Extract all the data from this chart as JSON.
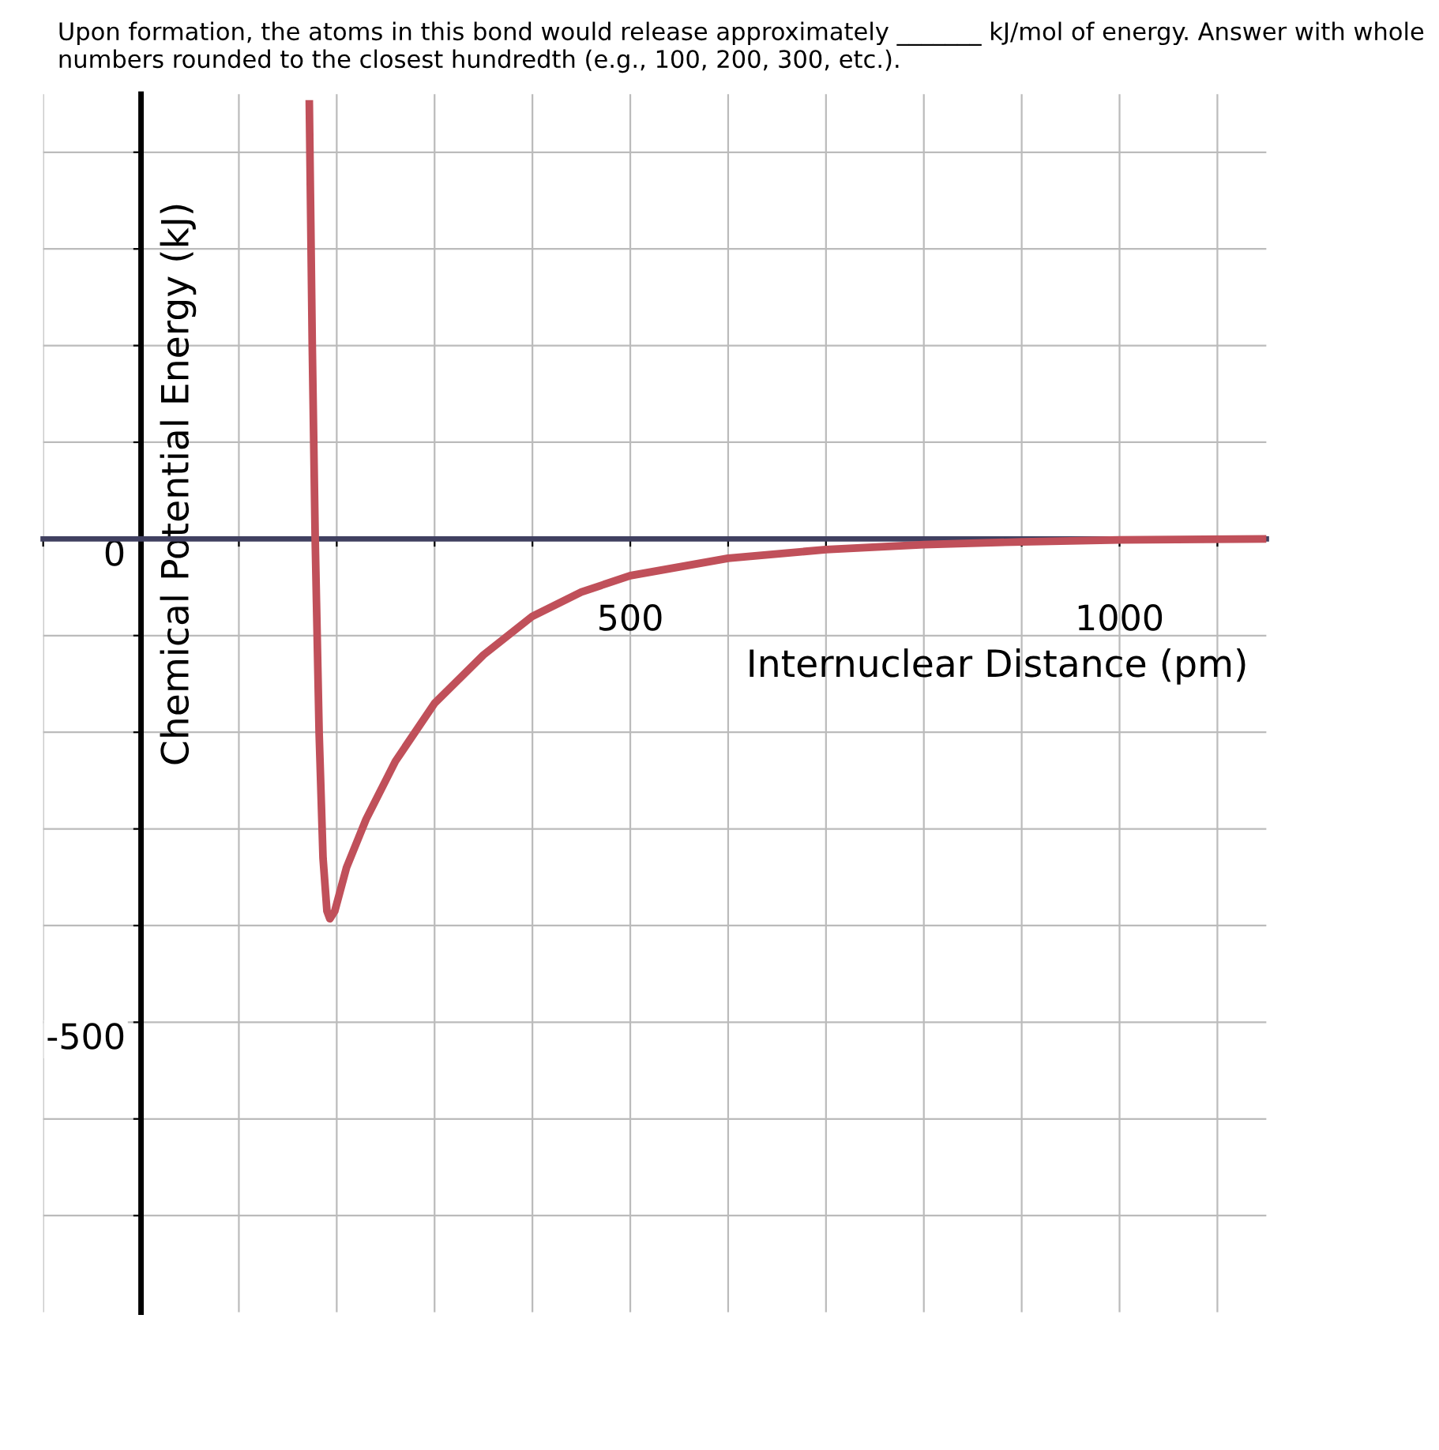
{
  "chart_data": {
    "type": "line",
    "title": "Upon formation, the atoms in this bond would release approximately _______ kJ/mol of energy. Answer with whole numbers rounded to the closest hundredth (e.g., 100, 200, 300, etc.).",
    "xlabel": "Internuclear Distance (pm)",
    "ylabel": "Chemical Potential Energy (kJ)",
    "series": [
      {
        "color": "#c0505a",
        "x": [
          172,
          175,
          178,
          182,
          186,
          190,
          193,
          198,
          210,
          230,
          260,
          300,
          350,
          400,
          450,
          500,
          600,
          700,
          800,
          900,
          1000,
          1150
        ],
        "values": [
          450,
          200,
          0,
          -200,
          -330,
          -385,
          -393,
          -385,
          -340,
          -290,
          -230,
          -170,
          -120,
          -80,
          -55,
          -38,
          -20,
          -11,
          -6,
          -3,
          -1,
          0
        ]
      }
    ],
    "xlim": [
      -100,
      1150
    ],
    "ylim": [
      -800,
      460
    ],
    "xticks": [
      {
        "value": -100,
        "label": null
      },
      {
        "value": 100,
        "label": null
      },
      {
        "value": 200,
        "label": null
      },
      {
        "value": 300,
        "label": null
      },
      {
        "value": 400,
        "label": null
      },
      500,
      {
        "value": 600,
        "label": null
      },
      {
        "value": 700,
        "label": null
      },
      {
        "value": 800,
        "label": null
      },
      {
        "value": 900,
        "label": null
      },
      1000,
      {
        "value": 1100,
        "label": null
      }
    ],
    "yticks": [
      {
        "value": -700,
        "label": null
      },
      {
        "value": -600,
        "label": null
      },
      -500,
      {
        "value": -400,
        "label": null
      },
      {
        "value": -300,
        "label": null
      },
      {
        "value": -200,
        "label": null
      },
      {
        "value": -100,
        "label": null
      },
      0,
      {
        "value": 100,
        "label": null
      },
      {
        "value": 200,
        "label": null
      },
      {
        "value": 300,
        "label": null
      },
      {
        "value": 400,
        "label": null
      }
    ],
    "grid": true,
    "line_style": "solid",
    "marker": "none"
  }
}
